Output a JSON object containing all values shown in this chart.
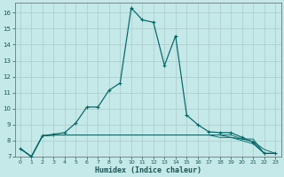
{
  "xlabel": "Humidex (Indice chaleur)",
  "bg_color": "#c5e8e8",
  "grid_color": "#b0d0d0",
  "line_color": "#006666",
  "x": [
    0,
    1,
    2,
    3,
    4,
    5,
    6,
    7,
    8,
    9,
    10,
    11,
    12,
    13,
    14,
    15,
    16,
    17,
    18,
    19,
    20,
    21,
    22,
    23
  ],
  "series": [
    [
      7.5,
      7.0,
      8.3,
      8.4,
      8.5,
      9.1,
      10.1,
      10.1,
      11.15,
      11.6,
      16.3,
      15.55,
      15.4,
      12.7,
      14.55,
      9.6,
      9.0,
      8.55,
      8.5,
      8.5,
      8.2,
      7.9,
      7.2,
      7.2
    ],
    [
      7.5,
      7.0,
      8.3,
      8.35,
      8.35,
      8.35,
      8.35,
      8.35,
      8.35,
      8.35,
      8.35,
      8.35,
      8.35,
      8.35,
      8.35,
      8.35,
      8.35,
      8.35,
      8.35,
      8.35,
      8.1,
      8.1,
      7.2,
      7.2
    ],
    [
      7.5,
      7.0,
      8.3,
      8.35,
      8.35,
      8.35,
      8.35,
      8.35,
      8.35,
      8.35,
      8.35,
      8.35,
      8.35,
      8.35,
      8.35,
      8.35,
      8.35,
      8.35,
      8.35,
      8.2,
      8.1,
      7.95,
      7.45,
      7.2
    ],
    [
      7.5,
      7.0,
      8.3,
      8.35,
      8.35,
      8.35,
      8.35,
      8.35,
      8.35,
      8.35,
      8.35,
      8.35,
      8.35,
      8.35,
      8.35,
      8.35,
      8.35,
      8.35,
      8.2,
      8.2,
      8.0,
      7.8,
      7.2,
      7.2
    ]
  ],
  "ylim": [
    7,
    16.6
  ],
  "xlim": [
    -0.5,
    23.5
  ],
  "yticks": [
    7,
    8,
    9,
    10,
    11,
    12,
    13,
    14,
    15,
    16
  ],
  "xtick_labels": [
    "0",
    "1",
    "2",
    "3",
    "4",
    "5",
    "6",
    "7",
    "8",
    "9",
    "10",
    "11",
    "12",
    "13",
    "14",
    "15",
    "16",
    "17",
    "18",
    "19",
    "20",
    "21",
    "22",
    "23"
  ],
  "xticks": [
    0,
    1,
    2,
    3,
    4,
    5,
    6,
    7,
    8,
    9,
    10,
    11,
    12,
    13,
    14,
    15,
    16,
    17,
    18,
    19,
    20,
    21,
    22,
    23
  ]
}
